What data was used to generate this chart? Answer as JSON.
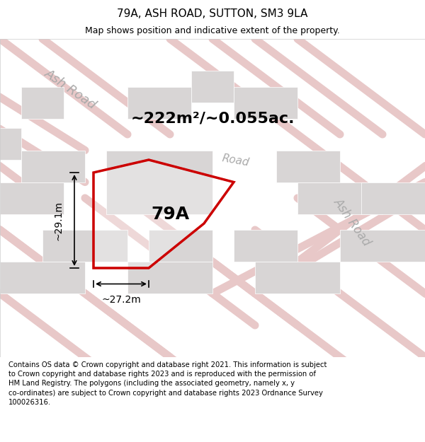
{
  "title": "79A, ASH ROAD, SUTTON, SM3 9LA",
  "subtitle": "Map shows position and indicative extent of the property.",
  "area_text": "~222m²/~0.055ac.",
  "label_79a": "79A",
  "dim_width": "~27.2m",
  "dim_height": "~29.1m",
  "road_label_ul": "Ash Road",
  "road_label_cr": "Road",
  "road_label_lr": "Ash Road",
  "footer": "Contains OS data © Crown copyright and database right 2021. This information is subject\nto Crown copyright and database rights 2023 and is reproduced with the permission of\nHM Land Registry. The polygons (including the associated geometry, namely x, y\nco-ordinates) are subject to Crown copyright and database rights 2023 Ordnance Survey\n100026316.",
  "map_bg": "#f5f3f3",
  "road_color": "#e8c8c8",
  "property_color": "#cc0000",
  "title_fontsize": 11,
  "subtitle_fontsize": 9,
  "area_fontsize": 16,
  "footer_fontsize": 7.2,
  "road_label_fontsize_main": 13,
  "road_label_fontsize_cr": 11,
  "road_label_fontsize_lr": 12
}
